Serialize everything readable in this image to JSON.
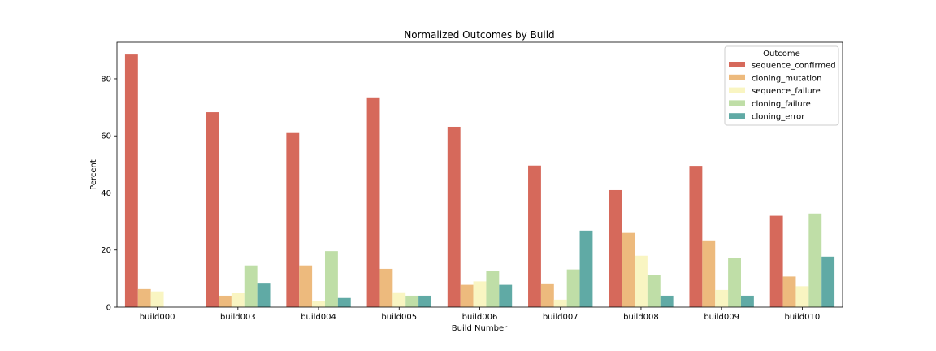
{
  "chart_data": {
    "type": "bar",
    "title": "Normalized Outcomes by Build",
    "xlabel": "Build Number",
    "ylabel": "Percent",
    "ylim": [
      0,
      92.8
    ],
    "yticks": [
      0,
      20,
      40,
      60,
      80
    ],
    "grid": false,
    "legend": {
      "title": "Outcome",
      "placement": "top-right"
    },
    "categories": [
      "build000",
      "build003",
      "build004",
      "build005",
      "build006",
      "build007",
      "build008",
      "build009",
      "build010"
    ],
    "series": [
      {
        "name": "sequence_confirmed",
        "color": "#d6695b",
        "values": [
          88.5,
          68.3,
          61.0,
          73.5,
          63.2,
          49.6,
          41.0,
          49.5,
          32.0
        ]
      },
      {
        "name": "cloning_mutation",
        "color": "#edba7d",
        "values": [
          6.3,
          4.0,
          14.6,
          13.4,
          7.8,
          8.3,
          26.0,
          23.4,
          10.7
        ]
      },
      {
        "name": "sequence_failure",
        "color": "#f9f5c2",
        "values": [
          5.5,
          4.9,
          2.0,
          5.2,
          9.0,
          2.6,
          18.0,
          6.0,
          7.3
        ]
      },
      {
        "name": "cloning_failure",
        "color": "#bfdea7",
        "values": [
          0,
          14.6,
          19.6,
          4.0,
          12.6,
          13.2,
          11.3,
          17.1,
          32.8
        ]
      },
      {
        "name": "cloning_error",
        "color": "#60aaa5",
        "values": [
          0,
          8.5,
          3.2,
          4.0,
          7.8,
          26.8,
          4.0,
          4.0,
          17.7
        ]
      }
    ]
  }
}
